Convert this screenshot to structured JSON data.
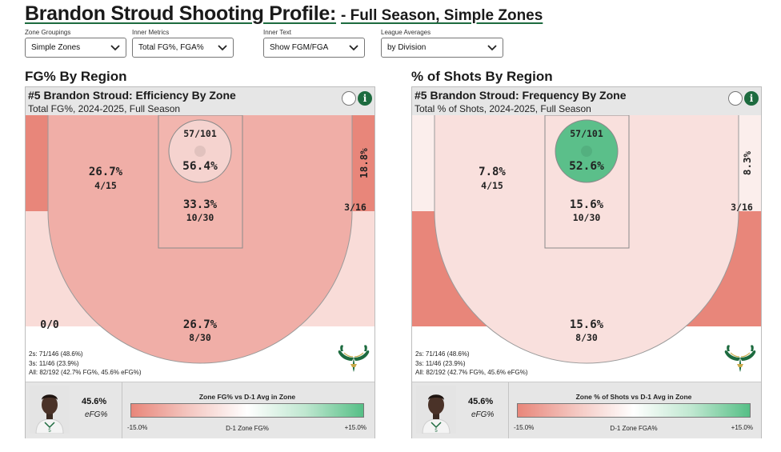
{
  "title": {
    "main": "Brandon Stroud Shooting Profile:",
    "sub": "- Full Season, Simple Zones"
  },
  "filters": [
    {
      "label": "Zone Groupings",
      "value": "Simple Zones"
    },
    {
      "label": "Inner Metrics",
      "value": "Total FG%, FGA%"
    },
    {
      "label": "Inner Text",
      "value": "Show FGM/FGA"
    },
    {
      "label": "League Averages",
      "value": "by Division"
    }
  ],
  "panels": [
    {
      "section": "FG% By Region",
      "title": "#5 Brandon Stroud: Efficiency By Zone",
      "subtitle": "Total FG%, 2024-2025, Full Season",
      "zones": {
        "rim": {
          "top": "57/101",
          "pct": "56.4%"
        },
        "paint": {
          "pct": "33.3%",
          "frac": "10/30"
        },
        "mid": {
          "pct": "26.7%",
          "frac": "4/15"
        },
        "corner": {
          "pct": "18.8%",
          "frac": "3/16"
        },
        "three": {
          "pct": "26.7%",
          "frac": "8/30"
        },
        "left_corner": {
          "frac": "0/0"
        }
      },
      "colors": {
        "rim": "#f5d3cf",
        "paint": "#f2b5ae",
        "mid": "#f0aea7",
        "left_corner": "#e8867a",
        "right_corner": "#e8867a",
        "three": "#f9dcd8",
        "deep": "#ffffff"
      },
      "stats": [
        "2s: 71/146 (48.6%)",
        "3s: 11/46 (23.9%)",
        "All: 82/192 (42.7% FG%, 45.6% eFG%)"
      ],
      "efg_value": "45.6%",
      "efg_label": "eFG%",
      "legend_title": "Zone FG% vs D-1 Avg in Zone",
      "legend_min": "-15.0%",
      "legend_mid": "D-1 Zone FG%",
      "legend_max": "+15.0%"
    },
    {
      "section": "% of Shots By Region",
      "title": "#5 Brandon Stroud: Frequency By Zone",
      "subtitle": "Total % of Shots, 2024-2025, Full Season",
      "zones": {
        "rim": {
          "top": "57/101",
          "pct": "52.6%"
        },
        "paint": {
          "pct": "15.6%",
          "frac": "10/30"
        },
        "mid": {
          "pct": "7.8%",
          "frac": "4/15"
        },
        "corner": {
          "pct": "8.3%",
          "frac": "3/16"
        },
        "three": {
          "pct": "15.6%",
          "frac": "8/30"
        },
        "left_corner": {
          "frac": ""
        }
      },
      "colors": {
        "rim": "#5bbf8a",
        "paint": "#f9e0dd",
        "mid": "#f9e0dd",
        "left_corner": "#fbeeec",
        "right_corner": "#fbeeec",
        "three": "#e8867a",
        "deep": "#ffffff"
      },
      "stats": [
        "2s: 71/146 (48.6%)",
        "3s: 11/46 (23.9%)",
        "All: 82/192 (42.7% FG%, 45.6% eFG%)"
      ],
      "efg_value": "45.6%",
      "efg_label": "eFG%",
      "legend_title": "Zone % of Shots vs D-1 Avg in Zone",
      "legend_min": "-15.0%",
      "legend_mid": "D-1 Zone FGA%",
      "legend_max": "+15.0%"
    }
  ]
}
